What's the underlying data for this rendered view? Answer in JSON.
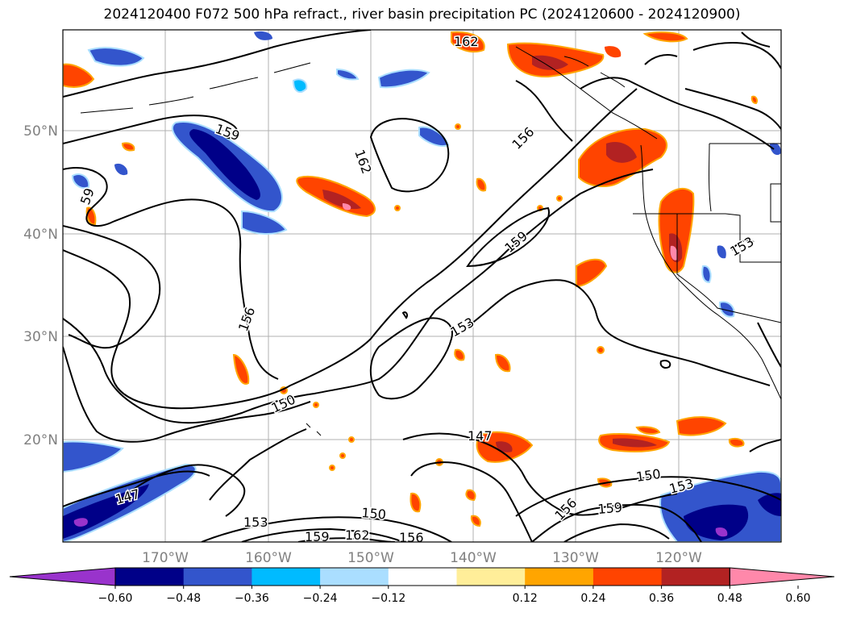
{
  "title": "2024120400 F072 500 hPa refract., river basin precipitation PC (2024120600 - 2024120900)",
  "map": {
    "lat_labels": [
      "50°N",
      "40°N",
      "30°N",
      "20°N"
    ],
    "lon_labels": [
      "170°W",
      "160°W",
      "150°W",
      "140°W",
      "130°W",
      "120°W"
    ],
    "contour_labels": [
      "162",
      "159",
      "162",
      "156",
      "59",
      "159",
      "153",
      "156",
      "153",
      "150",
      "147",
      "150",
      "153",
      "147",
      "150",
      "156",
      "159",
      "153",
      "159",
      "162",
      "156"
    ]
  },
  "colorbar": {
    "ticks": [
      "−0.60",
      "−0.48",
      "−0.36",
      "−0.24",
      "−0.12",
      "0.12",
      "0.24",
      "0.36",
      "0.48",
      "0.60"
    ],
    "colors": [
      "#9933cc",
      "#000088",
      "#3355cc",
      "#00bbff",
      "#aadeff",
      "#ffffff",
      "#ffee99",
      "#ffa500",
      "#ff4400",
      "#b22222",
      "#ff88aa"
    ]
  }
}
